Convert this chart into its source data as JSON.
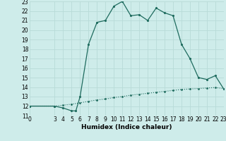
{
  "title": "",
  "xlabel": "Humidex (Indice chaleur)",
  "bg_color": "#ceecea",
  "grid_color": "#b8dbd8",
  "line_color": "#1e6b5e",
  "x_main": [
    0,
    3,
    4,
    5,
    5.5,
    6,
    7,
    8,
    9,
    10,
    11,
    12,
    13,
    14,
    15,
    16,
    17,
    18,
    19,
    20,
    21,
    22,
    23
  ],
  "y_main": [
    12.0,
    12.0,
    11.8,
    11.5,
    11.5,
    13.0,
    18.5,
    20.8,
    21.0,
    22.5,
    23.0,
    21.5,
    21.6,
    21.0,
    22.3,
    21.8,
    21.5,
    18.5,
    17.0,
    15.0,
    14.8,
    15.2,
    13.8
  ],
  "x_diag": [
    0,
    3,
    4,
    5,
    6,
    7,
    8,
    9,
    10,
    11,
    12,
    13,
    14,
    15,
    16,
    17,
    18,
    19,
    20,
    21,
    22,
    23
  ],
  "y_diag": [
    12.0,
    12.0,
    12.1,
    12.2,
    12.35,
    12.5,
    12.65,
    12.75,
    12.9,
    13.0,
    13.15,
    13.25,
    13.35,
    13.45,
    13.55,
    13.65,
    13.75,
    13.8,
    13.85,
    13.9,
    13.95,
    13.85
  ],
  "xlim": [
    0,
    23
  ],
  "ylim": [
    11,
    23
  ],
  "xticks": [
    0,
    3,
    4,
    5,
    6,
    7,
    8,
    9,
    10,
    11,
    12,
    13,
    14,
    15,
    16,
    17,
    18,
    19,
    20,
    21,
    22,
    23
  ],
  "yticks": [
    11,
    12,
    13,
    14,
    15,
    16,
    17,
    18,
    19,
    20,
    21,
    22,
    23
  ],
  "tick_fontsize": 5.5,
  "xlabel_fontsize": 6.5
}
